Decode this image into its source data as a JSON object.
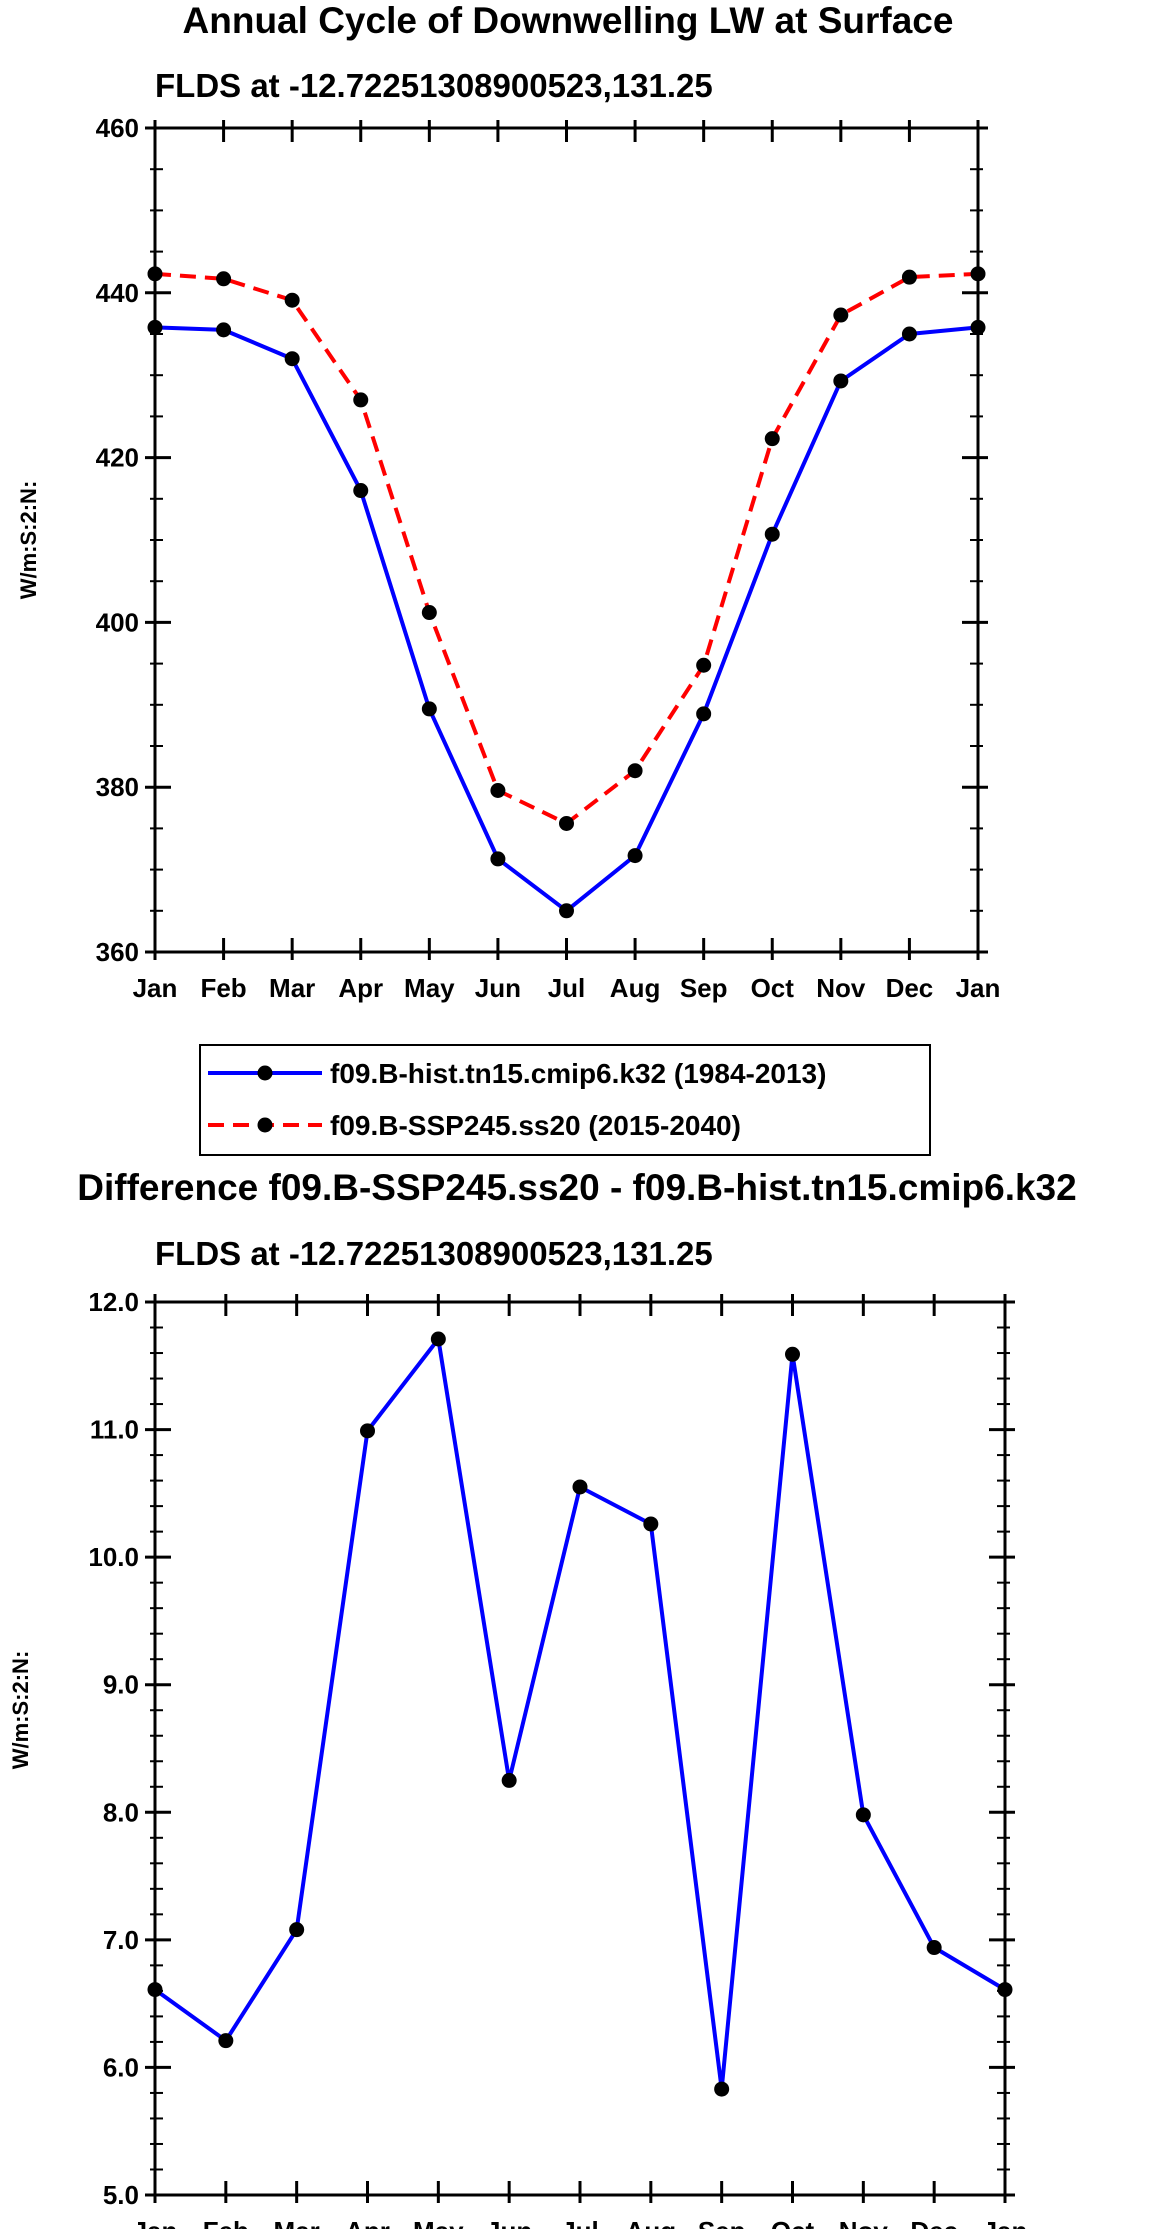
{
  "chart_data": [
    {
      "type": "line",
      "title": "Annual Cycle of Downwelling LW at Surface",
      "subtitle": "FLDS at -12.72251308900523,131.25",
      "xlabel": "",
      "ylabel": "W/m:S:2:N:",
      "categories": [
        "Jan",
        "Feb",
        "Mar",
        "Apr",
        "May",
        "Jun",
        "Jul",
        "Aug",
        "Sep",
        "Oct",
        "Nov",
        "Dec",
        "Jan"
      ],
      "ylim": [
        360,
        460
      ],
      "yticks": [
        "360",
        "380",
        "400",
        "420",
        "440",
        "460"
      ],
      "grid": false,
      "legend_position": "bottom",
      "series": [
        {
          "name": "f09.B-hist.tn15.cmip6.k32 (1984-2013)",
          "color": "#0000ff",
          "dash": "solid",
          "values": [
            435.8,
            435.5,
            432.0,
            416.0,
            389.5,
            371.3,
            365.0,
            371.7,
            388.9,
            410.7,
            429.3,
            435.0,
            435.8
          ]
        },
        {
          "name": "f09.B-SSP245.ss20 (2015-2040)",
          "color": "#ff0000",
          "dash": "dashed",
          "values": [
            442.3,
            441.7,
            439.1,
            427.0,
            401.2,
            379.6,
            375.6,
            382.0,
            394.8,
            422.3,
            437.3,
            441.9,
            442.3
          ]
        }
      ]
    },
    {
      "type": "line",
      "title": "Difference f09.B-SSP245.ss20 - f09.B-hist.tn15.cmip6.k32",
      "subtitle": "FLDS at -12.72251308900523,131.25",
      "xlabel": "",
      "ylabel": "W/m:S:2:N:",
      "categories": [
        "Jan",
        "Feb",
        "Mar",
        "Apr",
        "May",
        "Jun",
        "Jul",
        "Aug",
        "Sep",
        "Oct",
        "Nov",
        "Dec",
        "Jan"
      ],
      "ylim": [
        5.0,
        12.0
      ],
      "yticks": [
        "5.0",
        "6.0",
        "7.0",
        "8.0",
        "9.0",
        "10.0",
        "11.0",
        "12.0"
      ],
      "grid": false,
      "series": [
        {
          "name": "Difference",
          "color": "#0000ff",
          "dash": "solid",
          "values": [
            6.61,
            6.21,
            7.08,
            10.99,
            11.71,
            8.25,
            10.55,
            10.26,
            5.83,
            11.59,
            7.98,
            6.94,
            6.61
          ]
        }
      ]
    }
  ]
}
